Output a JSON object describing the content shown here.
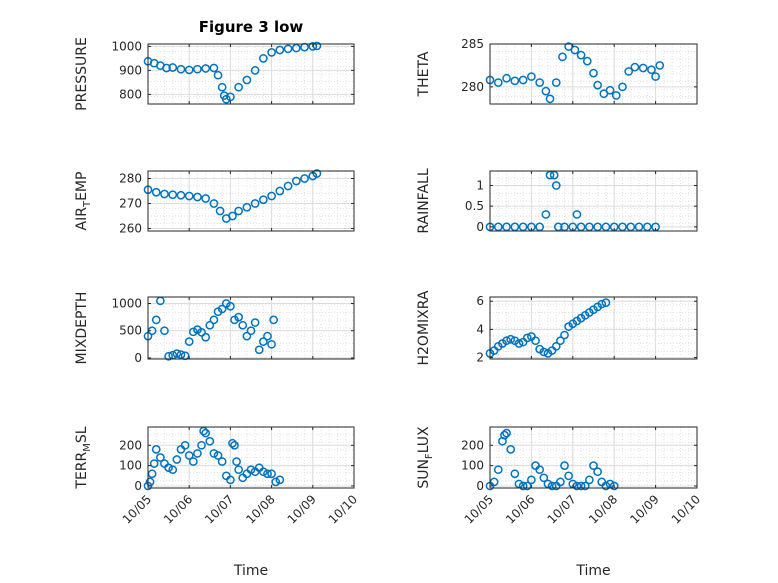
{
  "chart_data": {
    "type": "scatter",
    "title": "Figure 3 low",
    "marker_color": "#0072BD",
    "x_ticks": [
      "10/05",
      "10/06",
      "10/07",
      "10/08",
      "10/09",
      "10/10"
    ],
    "xlabel": "Time",
    "grid": true,
    "panels": [
      {
        "id": "pressure",
        "ylabel": "PRESSURE",
        "ylim": [
          760,
          1010
        ],
        "yticks": [
          800,
          900,
          1000
        ],
        "points": [
          [
            0.0,
            938
          ],
          [
            0.15,
            930
          ],
          [
            0.3,
            920
          ],
          [
            0.45,
            910
          ],
          [
            0.6,
            912
          ],
          [
            0.8,
            905
          ],
          [
            1.0,
            902
          ],
          [
            1.2,
            905
          ],
          [
            1.4,
            908
          ],
          [
            1.6,
            910
          ],
          [
            1.7,
            880
          ],
          [
            1.8,
            830
          ],
          [
            1.85,
            795
          ],
          [
            1.9,
            780
          ],
          [
            2.0,
            790
          ],
          [
            2.2,
            830
          ],
          [
            2.4,
            860
          ],
          [
            2.6,
            900
          ],
          [
            2.8,
            950
          ],
          [
            3.0,
            975
          ],
          [
            3.2,
            985
          ],
          [
            3.4,
            990
          ],
          [
            3.6,
            993
          ],
          [
            3.8,
            997
          ],
          [
            4.0,
            1000
          ],
          [
            4.1,
            1002
          ]
        ]
      },
      {
        "id": "theta",
        "ylabel": "THETA",
        "ylim": [
          278,
          285
        ],
        "yticks": [
          280,
          285
        ],
        "points": [
          [
            0.0,
            280.8
          ],
          [
            0.2,
            280.5
          ],
          [
            0.4,
            281
          ],
          [
            0.6,
            280.7
          ],
          [
            0.8,
            280.8
          ],
          [
            1.0,
            281.2
          ],
          [
            1.2,
            280.5
          ],
          [
            1.35,
            279.5
          ],
          [
            1.45,
            278.6
          ],
          [
            1.6,
            280.5
          ],
          [
            1.75,
            283.5
          ],
          [
            1.9,
            284.7
          ],
          [
            2.05,
            284.3
          ],
          [
            2.2,
            283.7
          ],
          [
            2.35,
            283
          ],
          [
            2.5,
            281.6
          ],
          [
            2.6,
            280.2
          ],
          [
            2.75,
            279.2
          ],
          [
            2.9,
            279.6
          ],
          [
            3.05,
            279
          ],
          [
            3.2,
            280
          ],
          [
            3.35,
            281.8
          ],
          [
            3.5,
            282.3
          ],
          [
            3.7,
            282.2
          ],
          [
            3.9,
            282
          ],
          [
            4.0,
            281.2
          ],
          [
            4.1,
            282.5
          ]
        ]
      },
      {
        "id": "airtemp",
        "ylabel": "AIR",
        "ylabel_sub": "T",
        "ylabel_rest": "EMP",
        "ylim": [
          259,
          283
        ],
        "yticks": [
          260,
          270,
          280
        ],
        "points": [
          [
            0.0,
            275.5
          ],
          [
            0.2,
            274.5
          ],
          [
            0.4,
            273.8
          ],
          [
            0.6,
            273.5
          ],
          [
            0.8,
            273.3
          ],
          [
            1.0,
            273
          ],
          [
            1.2,
            272.6
          ],
          [
            1.4,
            272
          ],
          [
            1.6,
            270
          ],
          [
            1.75,
            267
          ],
          [
            1.9,
            264
          ],
          [
            2.05,
            265
          ],
          [
            2.2,
            267
          ],
          [
            2.4,
            268.5
          ],
          [
            2.6,
            270
          ],
          [
            2.8,
            271.5
          ],
          [
            3.0,
            273
          ],
          [
            3.2,
            275
          ],
          [
            3.4,
            277
          ],
          [
            3.6,
            279
          ],
          [
            3.8,
            280
          ],
          [
            4.0,
            281
          ],
          [
            4.1,
            282
          ]
        ]
      },
      {
        "id": "rainfall",
        "ylabel": "RAINFALL",
        "ylim": [
          -0.1,
          1.35
        ],
        "yticks": [
          0,
          0.5,
          1
        ],
        "points": [
          [
            0.0,
            0
          ],
          [
            0.2,
            0
          ],
          [
            0.4,
            0
          ],
          [
            0.6,
            0
          ],
          [
            0.8,
            0
          ],
          [
            1.0,
            0
          ],
          [
            1.2,
            0
          ],
          [
            1.35,
            0.3
          ],
          [
            1.45,
            1.25
          ],
          [
            1.55,
            1.25
          ],
          [
            1.6,
            1.0
          ],
          [
            1.65,
            0
          ],
          [
            1.8,
            0
          ],
          [
            2.0,
            0
          ],
          [
            2.1,
            0.3
          ],
          [
            2.2,
            0
          ],
          [
            2.4,
            0
          ],
          [
            2.6,
            0
          ],
          [
            2.8,
            0
          ],
          [
            3.0,
            0
          ],
          [
            3.2,
            0
          ],
          [
            3.4,
            0
          ],
          [
            3.6,
            0
          ],
          [
            3.8,
            0
          ],
          [
            4.0,
            0
          ]
        ]
      },
      {
        "id": "mixdepth",
        "ylabel": "MIXDEPTH",
        "ylim": [
          -20,
          1120
        ],
        "yticks": [
          0,
          500,
          1000
        ],
        "points": [
          [
            0.0,
            400
          ],
          [
            0.1,
            500
          ],
          [
            0.2,
            700
          ],
          [
            0.3,
            1050
          ],
          [
            0.4,
            500
          ],
          [
            0.5,
            30
          ],
          [
            0.6,
            50
          ],
          [
            0.7,
            80
          ],
          [
            0.8,
            60
          ],
          [
            0.9,
            40
          ],
          [
            1.0,
            300
          ],
          [
            1.1,
            480
          ],
          [
            1.2,
            520
          ],
          [
            1.3,
            470
          ],
          [
            1.4,
            380
          ],
          [
            1.5,
            600
          ],
          [
            1.6,
            700
          ],
          [
            1.7,
            850
          ],
          [
            1.8,
            900
          ],
          [
            1.9,
            1000
          ],
          [
            2.0,
            950
          ],
          [
            2.1,
            700
          ],
          [
            2.2,
            750
          ],
          [
            2.3,
            600
          ],
          [
            2.4,
            400
          ],
          [
            2.5,
            500
          ],
          [
            2.6,
            650
          ],
          [
            2.7,
            150
          ],
          [
            2.8,
            300
          ],
          [
            2.9,
            400
          ],
          [
            3.0,
            250
          ],
          [
            3.05,
            700
          ]
        ]
      },
      {
        "id": "h2omixra",
        "ylabel": "H2OMIXRA",
        "ylim": [
          1.9,
          6.3
        ],
        "yticks": [
          2,
          4,
          6
        ],
        "points": [
          [
            0.0,
            2.3
          ],
          [
            0.1,
            2.5
          ],
          [
            0.2,
            2.8
          ],
          [
            0.3,
            3.0
          ],
          [
            0.4,
            3.2
          ],
          [
            0.5,
            3.3
          ],
          [
            0.6,
            3.2
          ],
          [
            0.7,
            3.0
          ],
          [
            0.8,
            3.1
          ],
          [
            0.9,
            3.4
          ],
          [
            1.0,
            3.5
          ],
          [
            1.1,
            3.2
          ],
          [
            1.2,
            2.6
          ],
          [
            1.3,
            2.4
          ],
          [
            1.4,
            2.3
          ],
          [
            1.5,
            2.5
          ],
          [
            1.6,
            2.8
          ],
          [
            1.7,
            3.2
          ],
          [
            1.8,
            3.6
          ],
          [
            1.9,
            4.2
          ],
          [
            2.0,
            4.4
          ],
          [
            2.1,
            4.6
          ],
          [
            2.2,
            4.8
          ],
          [
            2.3,
            5.0
          ],
          [
            2.4,
            5.2
          ],
          [
            2.5,
            5.4
          ],
          [
            2.6,
            5.6
          ],
          [
            2.7,
            5.8
          ],
          [
            2.8,
            5.9
          ]
        ]
      },
      {
        "id": "terrmsl",
        "ylabel": "TERR",
        "ylabel_sub": "M",
        "ylabel_rest": "SL",
        "ylim": [
          -10,
          290
        ],
        "yticks": [
          0,
          100,
          200
        ],
        "points": [
          [
            0.0,
            0
          ],
          [
            0.05,
            20
          ],
          [
            0.1,
            60
          ],
          [
            0.15,
            110
          ],
          [
            0.2,
            180
          ],
          [
            0.3,
            140
          ],
          [
            0.4,
            110
          ],
          [
            0.5,
            90
          ],
          [
            0.6,
            80
          ],
          [
            0.7,
            130
          ],
          [
            0.8,
            180
          ],
          [
            0.9,
            200
          ],
          [
            1.0,
            150
          ],
          [
            1.1,
            120
          ],
          [
            1.2,
            160
          ],
          [
            1.3,
            200
          ],
          [
            1.35,
            270
          ],
          [
            1.4,
            260
          ],
          [
            1.5,
            220
          ],
          [
            1.6,
            160
          ],
          [
            1.7,
            150
          ],
          [
            1.8,
            120
          ],
          [
            1.9,
            50
          ],
          [
            2.0,
            30
          ],
          [
            2.05,
            210
          ],
          [
            2.1,
            200
          ],
          [
            2.15,
            120
          ],
          [
            2.2,
            80
          ],
          [
            2.3,
            40
          ],
          [
            2.4,
            60
          ],
          [
            2.5,
            80
          ],
          [
            2.6,
            70
          ],
          [
            2.7,
            90
          ],
          [
            2.8,
            70
          ],
          [
            2.9,
            60
          ],
          [
            3.0,
            60
          ],
          [
            3.1,
            20
          ],
          [
            3.2,
            30
          ]
        ]
      },
      {
        "id": "sunflux",
        "ylabel": "SUN",
        "ylabel_sub": "F",
        "ylabel_rest": "LUX",
        "ylim": [
          -10,
          290
        ],
        "yticks": [
          0,
          100,
          200
        ],
        "points": [
          [
            0.0,
            0
          ],
          [
            0.1,
            20
          ],
          [
            0.2,
            80
          ],
          [
            0.3,
            220
          ],
          [
            0.35,
            250
          ],
          [
            0.4,
            260
          ],
          [
            0.5,
            180
          ],
          [
            0.6,
            60
          ],
          [
            0.7,
            10
          ],
          [
            0.8,
            0
          ],
          [
            0.9,
            0
          ],
          [
            1.0,
            30
          ],
          [
            1.1,
            100
          ],
          [
            1.2,
            80
          ],
          [
            1.3,
            40
          ],
          [
            1.4,
            10
          ],
          [
            1.5,
            0
          ],
          [
            1.6,
            0
          ],
          [
            1.7,
            20
          ],
          [
            1.8,
            100
          ],
          [
            1.9,
            50
          ],
          [
            2.0,
            10
          ],
          [
            2.1,
            0
          ],
          [
            2.2,
            0
          ],
          [
            2.3,
            0
          ],
          [
            2.4,
            30
          ],
          [
            2.5,
            100
          ],
          [
            2.6,
            70
          ],
          [
            2.7,
            20
          ],
          [
            2.8,
            0
          ],
          [
            2.9,
            10
          ],
          [
            3.0,
            0
          ]
        ]
      }
    ]
  }
}
